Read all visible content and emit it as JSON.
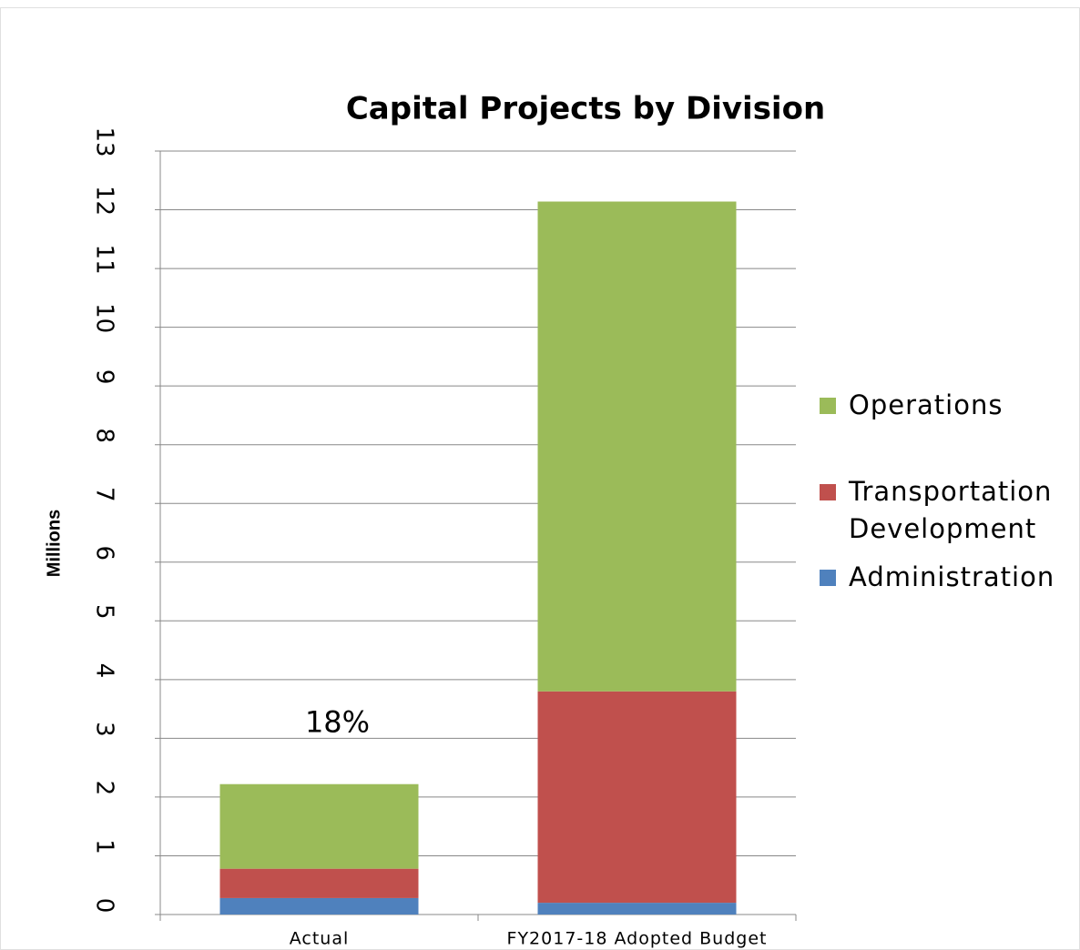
{
  "chart_data": {
    "type": "stacked_bar",
    "title": "Capital Projects by Division",
    "y_label": "Millions",
    "categories": [
      "Actual",
      "FY2017-18 Adopted Budget"
    ],
    "series": [
      {
        "name": "Administration",
        "color": "#4f81bd",
        "values": [
          0.28,
          0.2
        ]
      },
      {
        "name": "Transportation Development",
        "color": "#c0504d",
        "values": [
          0.5,
          3.6
        ]
      },
      {
        "name": "Operations",
        "color": "#9bbb59",
        "values": [
          1.44,
          8.34
        ]
      }
    ],
    "annotations": [
      {
        "text": "18%",
        "category": 0
      }
    ],
    "ylim": [
      0,
      13
    ],
    "yticks": [
      0,
      1,
      2,
      3,
      4,
      5,
      6,
      7,
      8,
      9,
      10,
      11,
      12,
      13
    ],
    "grid": true,
    "legend": "right"
  }
}
